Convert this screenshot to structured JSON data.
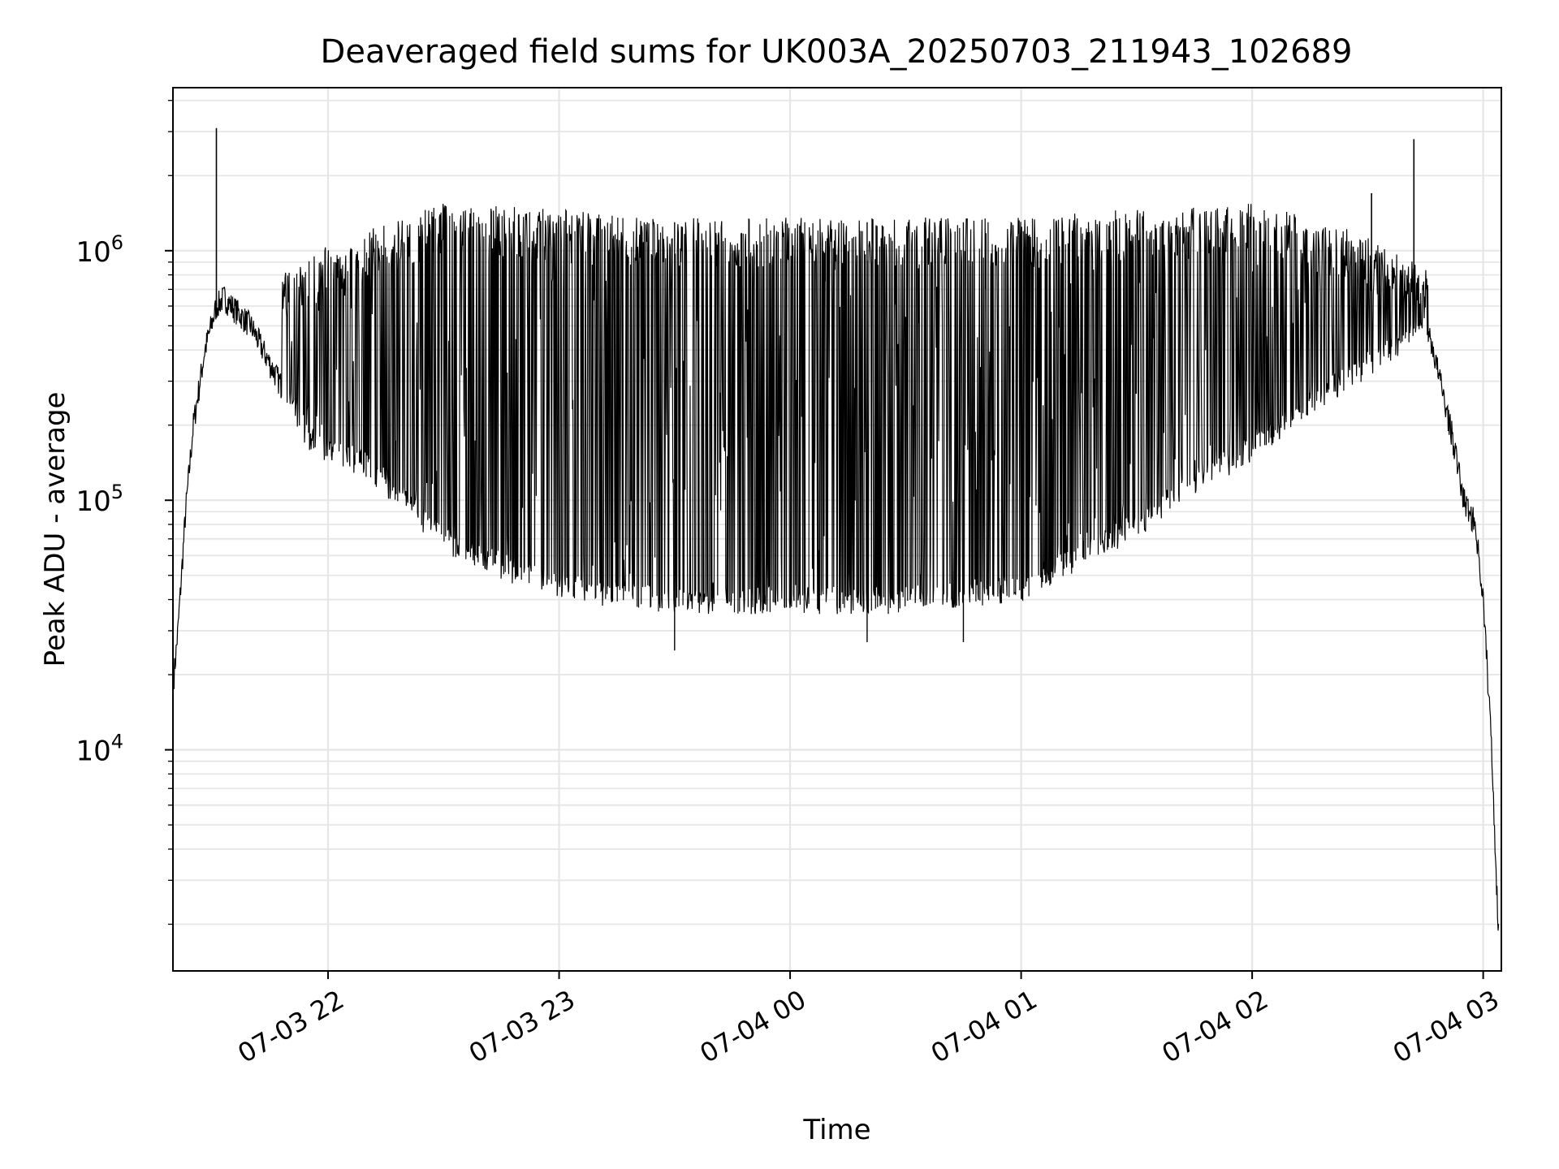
{
  "chart_data": {
    "type": "line",
    "title": "Deaveraged field sums for UK003A_20250703_211943_102689",
    "xlabel": "Time",
    "ylabel": "Peak ADU - average",
    "yscale": "log",
    "ylim": [
      1300,
      4500000
    ],
    "xlim": [
      "2025-07-03 21:19:43",
      "2025-07-04 03:04:43"
    ],
    "grid": "on (major and minor, light gray)",
    "legend": "none",
    "line_color": "#000000",
    "xticks": [
      {
        "value": "2025-07-03 22:00",
        "label": "07-03 22"
      },
      {
        "value": "2025-07-03 23:00",
        "label": "07-03 23"
      },
      {
        "value": "2025-07-04 00:00",
        "label": "07-04 00"
      },
      {
        "value": "2025-07-04 01:00",
        "label": "07-04 01"
      },
      {
        "value": "2025-07-04 02:00",
        "label": "07-04 02"
      },
      {
        "value": "2025-07-04 03:00",
        "label": "07-04 03"
      }
    ],
    "yticks": [
      {
        "value": 10000,
        "base": "10",
        "exp": "4"
      },
      {
        "value": 100000,
        "base": "10",
        "exp": "5"
      },
      {
        "value": 1000000,
        "base": "10",
        "exp": "6"
      }
    ],
    "series": [
      {
        "values_note": "approximate readings: baseline envelope and upper envelope; the original trace flickers rapidly between them",
        "baseline": {
          "x": [
            "2025-07-03 21:20",
            "2025-07-03 21:21",
            "2025-07-03 21:23",
            "2025-07-03 21:25",
            "2025-07-03 21:28",
            "2025-07-03 21:31",
            "2025-07-03 21:33",
            "2025-07-03 21:35",
            "2025-07-03 21:40",
            "2025-07-03 21:45",
            "2025-07-03 21:50",
            "2025-07-03 21:55",
            "2025-07-03 22:00",
            "2025-07-03 22:10",
            "2025-07-03 22:20",
            "2025-07-03 22:30",
            "2025-07-03 22:45",
            "2025-07-03 23:00",
            "2025-07-03 23:30",
            "2025-07-04 00:00",
            "2025-07-04 00:30",
            "2025-07-04 01:00",
            "2025-07-04 01:30",
            "2025-07-04 01:45",
            "2025-07-04 02:00",
            "2025-07-04 02:15",
            "2025-07-04 02:30",
            "2025-07-04 02:40",
            "2025-07-04 02:45",
            "2025-07-04 02:50",
            "2025-07-04 02:52",
            "2025-07-04 02:55",
            "2025-07-04 02:58",
            "2025-07-04 03:00",
            "2025-07-04 03:02",
            "2025-07-04 03:04"
          ],
          "y": [
            20000,
            30000,
            90000,
            200000,
            400000,
            600000,
            650000,
            600000,
            500000,
            350000,
            250000,
            180000,
            160000,
            140000,
            100000,
            70000,
            55000,
            45000,
            40000,
            40000,
            40000,
            45000,
            80000,
            120000,
            160000,
            250000,
            350000,
            450000,
            550000,
            250000,
            180000,
            100000,
            80000,
            40000,
            12000,
            1800
          ]
        },
        "upper_envelope": {
          "x": [
            "2025-07-03 21:50",
            "2025-07-03 22:00",
            "2025-07-03 22:30",
            "2025-07-03 23:00",
            "2025-07-03 23:30",
            "2025-07-04 00:00",
            "2025-07-04 00:30",
            "2025-07-04 01:00",
            "2025-07-04 01:30",
            "2025-07-04 02:00",
            "2025-07-04 02:30",
            "2025-07-04 02:45"
          ],
          "y": [
            800000,
            1000000,
            1500000,
            1400000,
            1300000,
            1300000,
            1300000,
            1300000,
            1400000,
            1500000,
            1100000,
            800000
          ]
        },
        "spikes": [
          {
            "x": "2025-07-03 21:31",
            "y": 3100000
          },
          {
            "x": "2025-07-04 02:42",
            "y": 2800000
          },
          {
            "x": "2025-07-04 02:31",
            "y": 1700000
          }
        ],
        "low_dips": [
          {
            "x": "2025-07-03 23:30",
            "y": 25000
          },
          {
            "x": "2025-07-04 00:20",
            "y": 27000
          },
          {
            "x": "2025-07-04 00:45",
            "y": 27000
          }
        ]
      }
    ]
  }
}
